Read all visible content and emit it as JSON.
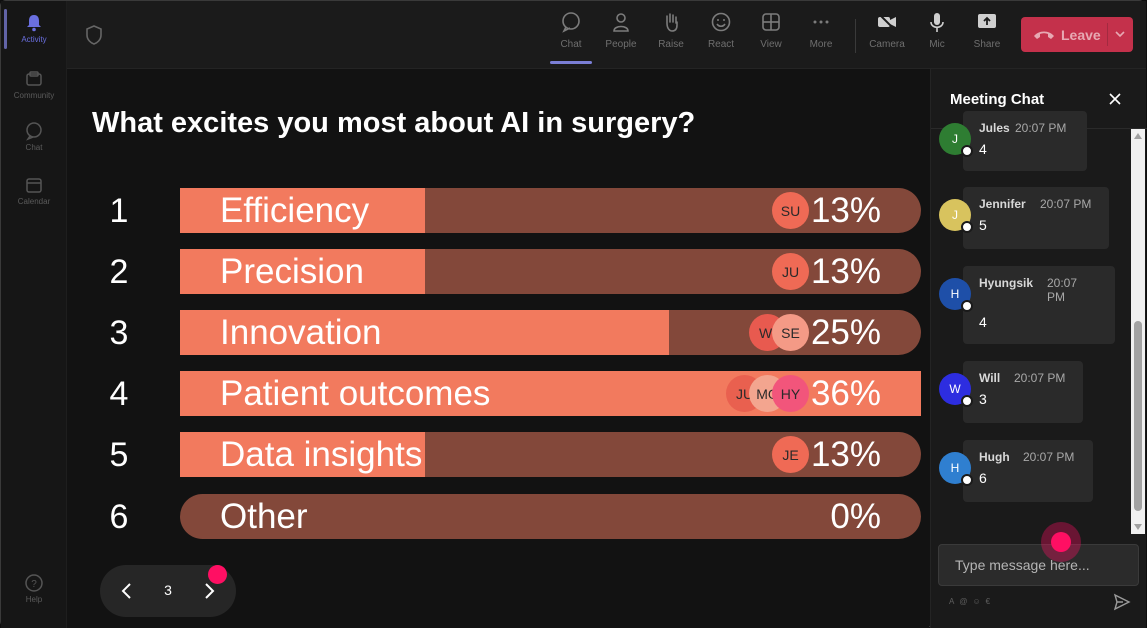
{
  "rail": {
    "items": [
      {
        "label": "Activity",
        "icon": "bell-icon"
      },
      {
        "label": "Community",
        "icon": "community-icon"
      },
      {
        "label": "Chat",
        "icon": "chat-icon"
      },
      {
        "label": "Calendar",
        "icon": "calendar-icon"
      }
    ],
    "help_label": "Help"
  },
  "toolbar": {
    "chat": "Chat",
    "people": "People",
    "raise": "Raise",
    "react": "React",
    "view": "View",
    "more": "More",
    "camera": "Camera",
    "mic": "Mic",
    "share": "Share",
    "leave": "Leave"
  },
  "poll": {
    "question": "What excites you most about AI in surgery?",
    "options": [
      {
        "num": "1",
        "label": "Efficiency",
        "pct": "13%",
        "value": 0.33,
        "avatars": [
          {
            "initials": "SU",
            "color": "#ef6a55"
          }
        ]
      },
      {
        "num": "2",
        "label": "Precision",
        "pct": "13%",
        "value": 0.33,
        "avatars": [
          {
            "initials": "JU",
            "color": "#ef6a55"
          }
        ]
      },
      {
        "num": "3",
        "label": "Innovation",
        "pct": "25%",
        "value": 0.66,
        "avatars": [
          {
            "initials": "WI",
            "color": "#e85a4f"
          },
          {
            "initials": "SE",
            "color": "#f49a86"
          }
        ]
      },
      {
        "num": "4",
        "label": "Patient outcomes",
        "pct": "36%",
        "value": 1.0,
        "avatars": [
          {
            "initials": "JU",
            "color": "#e9604f"
          },
          {
            "initials": "MO",
            "color": "#f3a58f"
          },
          {
            "initials": "HY",
            "color": "#f2557b"
          }
        ]
      },
      {
        "num": "5",
        "label": "Data insights",
        "pct": "13%",
        "value": 0.33,
        "avatars": [
          {
            "initials": "JE",
            "color": "#ef6a55"
          }
        ]
      },
      {
        "num": "6",
        "label": "Other",
        "pct": "0%",
        "value": 0.0,
        "avatars": []
      }
    ],
    "fill_color": "#f27a5e",
    "track_color": "#83483a"
  },
  "pager": {
    "page": "3"
  },
  "chat": {
    "title": "Meeting Chat",
    "messages": [
      {
        "initial": "J",
        "color": "#2e7d32",
        "name": "Jules",
        "time": "20:07 PM",
        "body": "4"
      },
      {
        "initial": "J",
        "color": "#d8c35e",
        "name": "Jennifer",
        "time": "20:07 PM",
        "body": "5"
      },
      {
        "initial": "H",
        "color": "#1e4fa8",
        "name": "Hyungsik",
        "time": "20:07 PM",
        "body": "4"
      },
      {
        "initial": "W",
        "color": "#2d2de0",
        "name": "Will",
        "time": "20:07 PM",
        "body": "3"
      },
      {
        "initial": "H",
        "color": "#2f7fd0",
        "name": "Hugh",
        "time": "20:07 PM",
        "body": "6"
      }
    ],
    "placeholder": "Type message here..."
  }
}
